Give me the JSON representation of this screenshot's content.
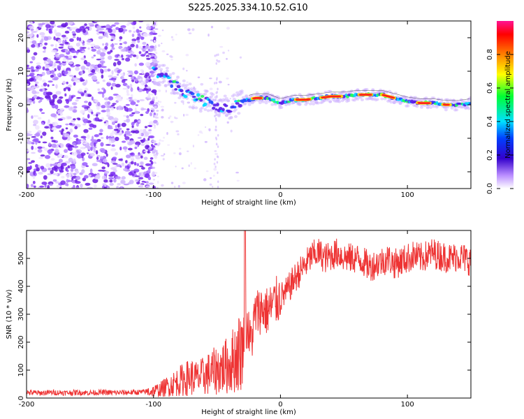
{
  "title": "S225.2025.334.10.52.G10",
  "chart_data": [
    {
      "type": "heatmap",
      "xlabel": "Height of straight line (km)",
      "ylabel": "Frequency (Hz)",
      "xlim": [
        -200,
        150
      ],
      "ylim": [
        -25,
        25
      ],
      "x_ticks": [
        -200,
        -100,
        0,
        100
      ],
      "y_ticks": [
        -20,
        -10,
        0,
        10,
        20
      ],
      "colorbar": {
        "label": "Normalized spectral amplitude",
        "range": [
          0,
          1
        ],
        "ticks": [
          0.0,
          0.2,
          0.4,
          0.6,
          0.8
        ]
      },
      "ridge_frequency": {
        "x": [
          -100,
          -90,
          -80,
          -70,
          -60,
          -50,
          -40,
          -30,
          -20,
          -10,
          0,
          10,
          20,
          30,
          40,
          50,
          60,
          70,
          80,
          90,
          100,
          110,
          120,
          130,
          140,
          150
        ],
        "y": [
          10,
          8,
          5,
          2.5,
          1,
          -0.5,
          -1,
          1,
          2,
          2,
          0.5,
          1.5,
          1.5,
          2,
          2.5,
          2.5,
          3,
          3,
          3,
          2,
          1,
          0.5,
          0.5,
          0,
          0,
          0.5
        ]
      }
    },
    {
      "type": "line",
      "xlabel": "Height of straight line (km)",
      "ylabel": "SNR (10 * v/v)",
      "xlim": [
        -200,
        150
      ],
      "ylim": [
        0,
        600
      ],
      "x_ticks": [
        -200,
        -100,
        0,
        100
      ],
      "y_ticks": [
        0,
        100,
        200,
        300,
        400,
        500
      ],
      "color": "#ee3333",
      "series": [
        {
          "name": "SNR",
          "x": [
            -200,
            -190,
            -180,
            -170,
            -160,
            -150,
            -140,
            -130,
            -120,
            -110,
            -100,
            -95,
            -90,
            -85,
            -80,
            -75,
            -70,
            -65,
            -60,
            -55,
            -50,
            -45,
            -40,
            -35,
            -30,
            -28,
            -26,
            -24,
            -22,
            -20,
            -15,
            -10,
            -5,
            0,
            5,
            10,
            15,
            20,
            25,
            30,
            35,
            40,
            45,
            50,
            55,
            60,
            65,
            70,
            75,
            80,
            85,
            90,
            95,
            100,
            105,
            110,
            115,
            120,
            125,
            130,
            135,
            140,
            145,
            150
          ],
          "y": [
            20,
            18,
            20,
            19,
            20,
            19,
            20,
            19,
            20,
            21,
            25,
            30,
            40,
            50,
            60,
            70,
            75,
            70,
            80,
            90,
            100,
            110,
            120,
            150,
            180,
            240,
            260,
            200,
            230,
            300,
            320,
            310,
            340,
            360,
            380,
            420,
            450,
            480,
            510,
            520,
            500,
            510,
            520,
            505,
            500,
            500,
            490,
            470,
            480,
            490,
            500,
            480,
            490,
            500,
            510,
            500,
            510,
            520,
            510,
            505,
            500,
            510,
            500,
            490
          ]
        }
      ]
    }
  ]
}
